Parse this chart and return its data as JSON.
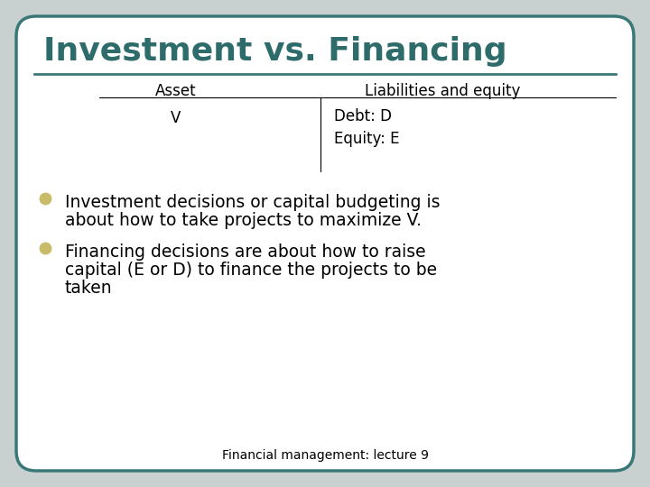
{
  "title": "Investment vs. Financing",
  "title_color": "#2E6B6B",
  "title_fontsize": 26,
  "title_fontweight": "bold",
  "bg_color": "#FFFFFF",
  "outer_bg_color": "#C8D0D0",
  "border_color": "#3A7878",
  "border_linewidth": 2.5,
  "table_header_left": "Asset",
  "table_header_right": "Liabilities and equity",
  "table_cell_left": "V",
  "table_cell_right_top": "Debt: D",
  "table_cell_right_bottom": "Equity: E",
  "bullet_color": "#C8BC6A",
  "bullet1_line1": "Investment decisions or capital budgeting is",
  "bullet1_line2": "about how to take projects to maximize V.",
  "bullet2_line1": "Financing decisions are about how to raise",
  "bullet2_line2": "capital (E or D) to finance the projects to be",
  "bullet2_line3": "taken",
  "footer": "Financial management: lecture 9",
  "footer_fontsize": 10,
  "body_fontsize": 13.5,
  "table_fontsize": 12
}
